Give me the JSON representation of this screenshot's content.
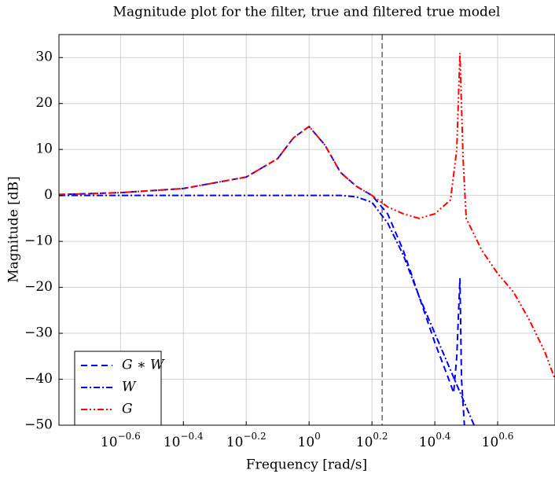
{
  "chart_data": {
    "type": "line",
    "title": "Magnitude plot for the filter, true and filtered true model",
    "x_label": "Frequency [rad/s]",
    "y_label": "Magnitude [dB]",
    "xscale": "log",
    "xlim": [
      0.16,
      6.06
    ],
    "ylim": [
      -50,
      35
    ],
    "xticks": [
      {
        "value": 0.2512,
        "label": "10−0.6"
      },
      {
        "value": 0.3981,
        "label": "10−0.4"
      },
      {
        "value": 0.631,
        "label": "10−0.2"
      },
      {
        "value": 1,
        "label": "100"
      },
      {
        "value": 1.585,
        "label": "100.2"
      },
      {
        "value": 2.512,
        "label": "100.4"
      },
      {
        "value": 3.981,
        "label": "100.6"
      }
    ],
    "yticks": [
      -50,
      -40,
      -30,
      -20,
      -10,
      0,
      10,
      20,
      30
    ],
    "grid": true,
    "vline": 1.708,
    "legend": "lower left",
    "series": [
      {
        "name": "G ∗ W",
        "color": "#0000ff",
        "linestyle": "dashed",
        "x": [
          0.16,
          0.251,
          0.398,
          0.631,
          0.794,
          0.891,
          1,
          1.122,
          1.259,
          1.413,
          1.585,
          1.778,
          1.995,
          2.239,
          2.512,
          2.818,
          2.884,
          2.951,
          3.02,
          3.055,
          3.12
        ],
        "values": [
          0.2,
          0.6,
          1.5,
          4,
          8,
          12.5,
          15,
          11,
          5,
          2,
          0,
          -4,
          -12,
          -22,
          -32,
          -41,
          -43,
          -35,
          -18,
          -40,
          -50
        ]
      },
      {
        "name": "W",
        "color": "#0000ff",
        "linestyle": "dashdot",
        "x": [
          0.16,
          0.631,
          1,
          1.259,
          1.413,
          1.585,
          1.778,
          1.995,
          2.239,
          2.512,
          2.818,
          3.162,
          3.35
        ],
        "values": [
          0,
          0,
          0,
          0,
          -0.3,
          -1.5,
          -6,
          -13,
          -22,
          -30,
          -38,
          -46,
          -50
        ]
      },
      {
        "name": "G",
        "color": "#ff0000",
        "linestyle": "dashdotdot",
        "x": [
          0.16,
          0.251,
          0.398,
          0.631,
          0.794,
          0.891,
          1,
          1.122,
          1.259,
          1.413,
          1.585,
          1.778,
          1.995,
          2.239,
          2.512,
          2.818,
          2.951,
          3.02,
          3.09,
          3.162,
          3.548,
          3.981,
          4.467,
          5.012,
          5.623,
          6.06
        ],
        "values": [
          0.2,
          0.6,
          1.5,
          4,
          8,
          12.5,
          15,
          11,
          5,
          2,
          0,
          -2.5,
          -4,
          -5,
          -4,
          -1,
          10,
          31,
          8,
          -5,
          -12,
          -17,
          -21,
          -27,
          -34,
          -40
        ]
      }
    ]
  }
}
